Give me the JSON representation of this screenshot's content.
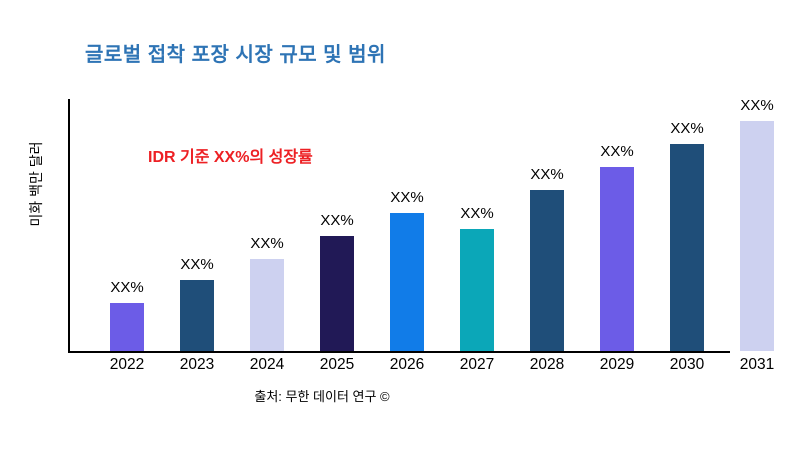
{
  "title": {
    "text": "글로벌 접착 포장 시장 규모 및 범위",
    "color": "#2e74b5"
  },
  "annotation": {
    "text": "IDR 기준 XX%의 성장률",
    "color": "#ed2024"
  },
  "y_axis": {
    "label": "미화 백만 달러"
  },
  "source": {
    "text": "출처: 무한 데이터 연구 ©"
  },
  "chart_data": {
    "type": "bar",
    "title": "글로벌 접착 포장 시장 규모 및 범위",
    "ylabel": "미화 백만 달러",
    "xlabel": "",
    "categories": [
      "2022",
      "2023",
      "2024",
      "2025",
      "2026",
      "2027",
      "2028",
      "2029",
      "2030",
      "2031"
    ],
    "values_relative_pct_of_max": [
      21,
      31,
      40,
      50,
      60,
      53,
      70,
      80,
      90,
      100
    ],
    "bar_value_labels": [
      "XX%",
      "XX%",
      "XX%",
      "XX%",
      "XX%",
      "XX%",
      "XX%",
      "XX%",
      "XX%",
      "XX%"
    ],
    "bar_colors": [
      "#6c5ce7",
      "#1f4e79",
      "#cdd1f0",
      "#211956",
      "#117ce8",
      "#0ba7b8",
      "#1f4e79",
      "#6c5ce7",
      "#1f4e79",
      "#cdd1f0"
    ],
    "annotation": "IDR 기준 XX%의 성장률",
    "annotation_color": "#ed2024",
    "title_color": "#2e74b5",
    "source": "출처: 무한 데이터 연구 ©",
    "grid": false,
    "legend": "none",
    "axis_color": "#000000",
    "background": "#ffffff"
  }
}
